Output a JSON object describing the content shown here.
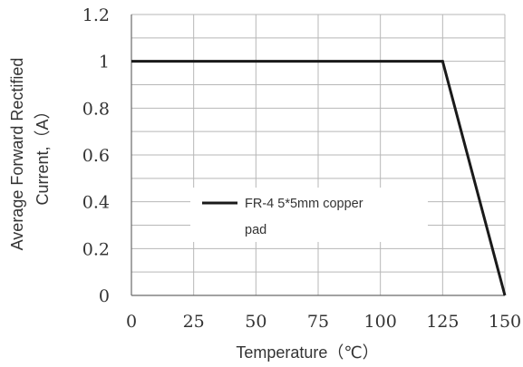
{
  "chart_data": {
    "type": "line",
    "xlabel": "Temperature（℃）",
    "ylabel_lines": [
      "Average Forward Rectified",
      "Current,（A）"
    ],
    "x_ticks": [
      0,
      25,
      50,
      75,
      100,
      125,
      150
    ],
    "y_ticks": [
      "0",
      "0.2",
      "0.4",
      "0.6",
      "0.8",
      "1",
      "1.2"
    ],
    "xlim": [
      0,
      150
    ],
    "ylim": [
      0,
      1.2
    ],
    "grid": true,
    "series": [
      {
        "name": "FR-4  5*5mm copper pad",
        "color": "#1a1a1a",
        "x": [
          0,
          125,
          150
        ],
        "y": [
          1,
          1,
          0
        ]
      }
    ],
    "legend": {
      "placement": "center-left inside plot",
      "label_line1": "FR-4  5*5mm copper",
      "label_line2": "pad"
    }
  }
}
